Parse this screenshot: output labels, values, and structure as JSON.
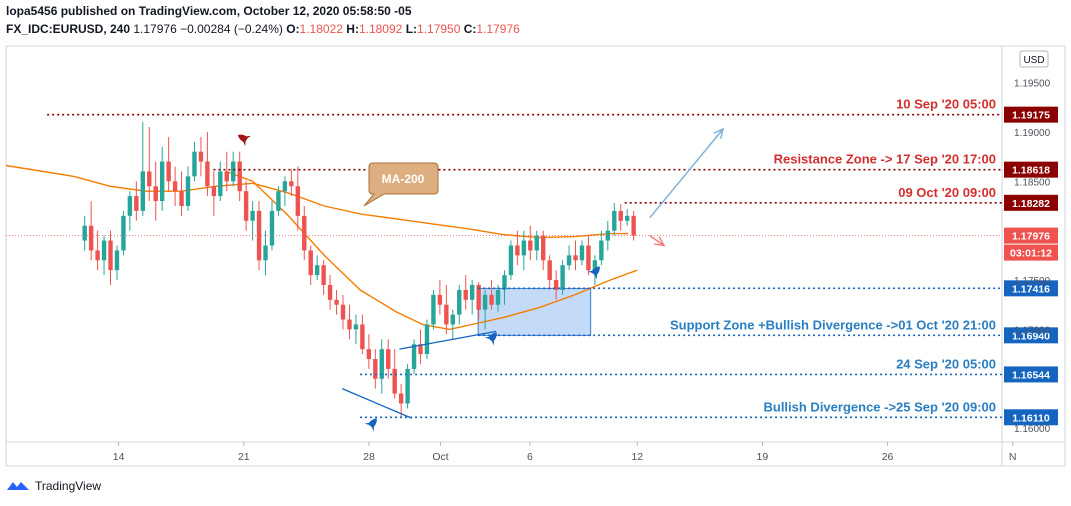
{
  "header": {
    "line1": "lopa5456 published on TradingView.com, October 12, 2020 05:58:50 -05",
    "symbol": "FX_IDC:EURUSD, 240",
    "last": "1.17976",
    "change": "−0.00284 (−0.24%)",
    "o_label": "O:",
    "o": "1.18022",
    "h_label": "H:",
    "h": "1.18092",
    "l_label": "L:",
    "l": "1.17950",
    "c_label": "C:",
    "c": "1.17976"
  },
  "currency_button": "USD",
  "footer": {
    "logo_text": "TradingView"
  },
  "colors": {
    "up": "#26a69a",
    "down": "#ef5350",
    "ma": "#f57c00",
    "resistance": "#8b0000",
    "support": "#1565c0",
    "support_label": "#2a7fc2",
    "zone_fill": "#b8d4f7"
  },
  "chart_data": {
    "type": "candlestick",
    "symbol": "EURUSD",
    "timeframe": "240",
    "ylim": [
      1.1588,
      1.1985
    ],
    "y_ticks": [
      "1.19500",
      "1.19000",
      "1.18500",
      "1.17500",
      "1.17000",
      "1.16000"
    ],
    "x_ticks": [
      {
        "label": "14",
        "t": 2.5
      },
      {
        "label": "21",
        "t": 9.5
      },
      {
        "label": "28",
        "t": 16.5
      },
      {
        "label": "Oct",
        "t": 20.5
      },
      {
        "label": "6",
        "t": 25.5
      },
      {
        "label": "12",
        "t": 31.5
      },
      {
        "label": "19",
        "t": 38.5
      },
      {
        "label": "26",
        "t": 45.5
      },
      {
        "label": "N",
        "t": 52.5
      }
    ],
    "xlim": [
      -3.8,
      51.9
    ],
    "candles": [
      {
        "o": 1.179,
        "h": 1.1815,
        "l": 1.178,
        "c": 1.1805
      },
      {
        "o": 1.1805,
        "h": 1.183,
        "l": 1.177,
        "c": 1.178
      },
      {
        "o": 1.178,
        "h": 1.18,
        "l": 1.176,
        "c": 1.177
      },
      {
        "o": 1.177,
        "h": 1.1795,
        "l": 1.1755,
        "c": 1.179
      },
      {
        "o": 1.179,
        "h": 1.18,
        "l": 1.1745,
        "c": 1.176
      },
      {
        "o": 1.176,
        "h": 1.1785,
        "l": 1.175,
        "c": 1.178
      },
      {
        "o": 1.178,
        "h": 1.182,
        "l": 1.1775,
        "c": 1.1815
      },
      {
        "o": 1.1815,
        "h": 1.184,
        "l": 1.18,
        "c": 1.1835
      },
      {
        "o": 1.1835,
        "h": 1.185,
        "l": 1.181,
        "c": 1.182
      },
      {
        "o": 1.182,
        "h": 1.191,
        "l": 1.1815,
        "c": 1.186
      },
      {
        "o": 1.186,
        "h": 1.1905,
        "l": 1.183,
        "c": 1.1845
      },
      {
        "o": 1.1845,
        "h": 1.187,
        "l": 1.181,
        "c": 1.183
      },
      {
        "o": 1.183,
        "h": 1.1885,
        "l": 1.182,
        "c": 1.187
      },
      {
        "o": 1.187,
        "h": 1.1895,
        "l": 1.184,
        "c": 1.185
      },
      {
        "o": 1.185,
        "h": 1.1865,
        "l": 1.1825,
        "c": 1.184
      },
      {
        "o": 1.184,
        "h": 1.186,
        "l": 1.1815,
        "c": 1.1825
      },
      {
        "o": 1.1825,
        "h": 1.1865,
        "l": 1.182,
        "c": 1.1855
      },
      {
        "o": 1.1855,
        "h": 1.189,
        "l": 1.185,
        "c": 1.188
      },
      {
        "o": 1.188,
        "h": 1.1895,
        "l": 1.1855,
        "c": 1.187
      },
      {
        "o": 1.187,
        "h": 1.19,
        "l": 1.1835,
        "c": 1.1845
      },
      {
        "o": 1.1845,
        "h": 1.186,
        "l": 1.1815,
        "c": 1.1835
      },
      {
        "o": 1.1835,
        "h": 1.187,
        "l": 1.183,
        "c": 1.186
      },
      {
        "o": 1.186,
        "h": 1.188,
        "l": 1.184,
        "c": 1.185
      },
      {
        "o": 1.185,
        "h": 1.188,
        "l": 1.1845,
        "c": 1.187
      },
      {
        "o": 1.187,
        "h": 1.188,
        "l": 1.183,
        "c": 1.184
      },
      {
        "o": 1.184,
        "h": 1.185,
        "l": 1.18,
        "c": 1.181
      },
      {
        "o": 1.181,
        "h": 1.183,
        "l": 1.179,
        "c": 1.182
      },
      {
        "o": 1.182,
        "h": 1.183,
        "l": 1.176,
        "c": 1.177
      },
      {
        "o": 1.177,
        "h": 1.18,
        "l": 1.1755,
        "c": 1.1785
      },
      {
        "o": 1.1785,
        "h": 1.183,
        "l": 1.178,
        "c": 1.182
      },
      {
        "o": 1.182,
        "h": 1.1845,
        "l": 1.1815,
        "c": 1.184
      },
      {
        "o": 1.184,
        "h": 1.1855,
        "l": 1.1825,
        "c": 1.185
      },
      {
        "o": 1.185,
        "h": 1.1862,
        "l": 1.1835,
        "c": 1.1845
      },
      {
        "o": 1.1845,
        "h": 1.1865,
        "l": 1.18,
        "c": 1.1815
      },
      {
        "o": 1.1815,
        "h": 1.1825,
        "l": 1.177,
        "c": 1.178
      },
      {
        "o": 1.178,
        "h": 1.1785,
        "l": 1.1745,
        "c": 1.1755
      },
      {
        "o": 1.1755,
        "h": 1.1775,
        "l": 1.175,
        "c": 1.1765
      },
      {
        "o": 1.1765,
        "h": 1.177,
        "l": 1.1735,
        "c": 1.1745
      },
      {
        "o": 1.1745,
        "h": 1.1755,
        "l": 1.172,
        "c": 1.173
      },
      {
        "o": 1.173,
        "h": 1.174,
        "l": 1.1715,
        "c": 1.1725
      },
      {
        "o": 1.1725,
        "h": 1.1735,
        "l": 1.17,
        "c": 1.171
      },
      {
        "o": 1.171,
        "h": 1.1725,
        "l": 1.169,
        "c": 1.17
      },
      {
        "o": 1.17,
        "h": 1.1715,
        "l": 1.1685,
        "c": 1.1705
      },
      {
        "o": 1.1705,
        "h": 1.1715,
        "l": 1.1675,
        "c": 1.168
      },
      {
        "o": 1.168,
        "h": 1.1695,
        "l": 1.166,
        "c": 1.167
      },
      {
        "o": 1.167,
        "h": 1.168,
        "l": 1.164,
        "c": 1.165
      },
      {
        "o": 1.165,
        "h": 1.169,
        "l": 1.1635,
        "c": 1.168
      },
      {
        "o": 1.168,
        "h": 1.169,
        "l": 1.165,
        "c": 1.166
      },
      {
        "o": 1.166,
        "h": 1.168,
        "l": 1.163,
        "c": 1.1635
      },
      {
        "o": 1.1635,
        "h": 1.1645,
        "l": 1.1611,
        "c": 1.1625
      },
      {
        "o": 1.1625,
        "h": 1.1665,
        "l": 1.162,
        "c": 1.166
      },
      {
        "o": 1.166,
        "h": 1.169,
        "l": 1.1655,
        "c": 1.1685
      },
      {
        "o": 1.1685,
        "h": 1.17,
        "l": 1.1665,
        "c": 1.1675
      },
      {
        "o": 1.1675,
        "h": 1.171,
        "l": 1.167,
        "c": 1.1705
      },
      {
        "o": 1.1705,
        "h": 1.174,
        "l": 1.17,
        "c": 1.1735
      },
      {
        "o": 1.1735,
        "h": 1.175,
        "l": 1.1715,
        "c": 1.1725
      },
      {
        "o": 1.1725,
        "h": 1.1745,
        "l": 1.1695,
        "c": 1.1705
      },
      {
        "o": 1.1705,
        "h": 1.172,
        "l": 1.169,
        "c": 1.1715
      },
      {
        "o": 1.1715,
        "h": 1.1745,
        "l": 1.1705,
        "c": 1.174
      },
      {
        "o": 1.174,
        "h": 1.1755,
        "l": 1.172,
        "c": 1.173
      },
      {
        "o": 1.173,
        "h": 1.175,
        "l": 1.1715,
        "c": 1.1745
      },
      {
        "o": 1.1745,
        "h": 1.1748,
        "l": 1.171,
        "c": 1.172
      },
      {
        "o": 1.172,
        "h": 1.174,
        "l": 1.17,
        "c": 1.1735
      },
      {
        "o": 1.1735,
        "h": 1.175,
        "l": 1.172,
        "c": 1.1725
      },
      {
        "o": 1.1725,
        "h": 1.1745,
        "l": 1.1718,
        "c": 1.174
      },
      {
        "o": 1.174,
        "h": 1.176,
        "l": 1.1725,
        "c": 1.1755
      },
      {
        "o": 1.1755,
        "h": 1.179,
        "l": 1.175,
        "c": 1.1785
      },
      {
        "o": 1.1785,
        "h": 1.18,
        "l": 1.1765,
        "c": 1.1775
      },
      {
        "o": 1.1775,
        "h": 1.18,
        "l": 1.176,
        "c": 1.179
      },
      {
        "o": 1.179,
        "h": 1.1805,
        "l": 1.177,
        "c": 1.178
      },
      {
        "o": 1.178,
        "h": 1.18,
        "l": 1.177,
        "c": 1.1795
      },
      {
        "o": 1.1795,
        "h": 1.18,
        "l": 1.176,
        "c": 1.177
      },
      {
        "o": 1.177,
        "h": 1.1775,
        "l": 1.174,
        "c": 1.175
      },
      {
        "o": 1.175,
        "h": 1.176,
        "l": 1.173,
        "c": 1.174
      },
      {
        "o": 1.174,
        "h": 1.177,
        "l": 1.1735,
        "c": 1.1765
      },
      {
        "o": 1.1765,
        "h": 1.1785,
        "l": 1.176,
        "c": 1.1775
      },
      {
        "o": 1.1775,
        "h": 1.179,
        "l": 1.176,
        "c": 1.177
      },
      {
        "o": 1.177,
        "h": 1.179,
        "l": 1.1765,
        "c": 1.1785
      },
      {
        "o": 1.1785,
        "h": 1.1795,
        "l": 1.1755,
        "c": 1.176
      },
      {
        "o": 1.176,
        "h": 1.1775,
        "l": 1.1745,
        "c": 1.177
      },
      {
        "o": 1.177,
        "h": 1.18,
        "l": 1.1765,
        "c": 1.179
      },
      {
        "o": 1.179,
        "h": 1.181,
        "l": 1.178,
        "c": 1.18
      },
      {
        "o": 1.18,
        "h": 1.1828,
        "l": 1.1795,
        "c": 1.182
      },
      {
        "o": 1.182,
        "h": 1.1827,
        "l": 1.18,
        "c": 1.181
      },
      {
        "o": 1.181,
        "h": 1.1822,
        "l": 1.1805,
        "c": 1.1815
      },
      {
        "o": 1.1815,
        "h": 1.182,
        "l": 1.179,
        "c": 1.1795
      }
    ],
    "ma_200": [
      [
        -3.8,
        1.1866
      ],
      [
        0,
        1.1855
      ],
      [
        2,
        1.1845
      ],
      [
        4,
        1.184
      ],
      [
        6,
        1.184
      ],
      [
        8,
        1.1845
      ],
      [
        10,
        1.1848
      ],
      [
        12,
        1.1838
      ],
      [
        14,
        1.1825
      ],
      [
        16,
        1.1817
      ],
      [
        18,
        1.1812
      ],
      [
        20,
        1.1807
      ],
      [
        22,
        1.1802
      ],
      [
        24,
        1.1796
      ],
      [
        26,
        1.1793
      ],
      [
        28,
        1.1794
      ],
      [
        30,
        1.1797
      ],
      [
        31,
        1.1797
      ]
    ],
    "ma_short": [
      [
        8.5,
        1.186
      ],
      [
        10,
        1.185
      ],
      [
        12,
        1.1815
      ],
      [
        14,
        1.1775
      ],
      [
        16,
        1.174
      ],
      [
        18,
        1.1718
      ],
      [
        19.5,
        1.1705
      ],
      [
        21,
        1.17
      ],
      [
        22.5,
        1.1706
      ],
      [
        24,
        1.1712
      ],
      [
        26,
        1.1722
      ],
      [
        28,
        1.1735
      ],
      [
        30,
        1.175
      ],
      [
        31.5,
        1.176
      ]
    ],
    "levels": [
      {
        "price": 1.19175,
        "price_label": "1.19175",
        "annotation": "10 Sep '20 05:00",
        "kind": "resistance",
        "t_start": -1.5
      },
      {
        "price": 1.18618,
        "price_label": "1.18618",
        "annotation": "Resistance Zone -> 17 Sep '20 17:00",
        "kind": "resistance",
        "t_start": 7.8
      },
      {
        "price": 1.18282,
        "price_label": "1.18282",
        "annotation": "09 Oct '20 09:00",
        "kind": "resistance",
        "t_start": 30.8
      },
      {
        "price": 1.17416,
        "price_label": "1.17416",
        "annotation": "",
        "kind": "support",
        "t_start": 22.6
      },
      {
        "price": 1.1694,
        "price_label": "1.16940",
        "annotation": "Support Zone +Bullish Divergence ->01 Oct '20 21:00",
        "kind": "support",
        "t_start": 22.6
      },
      {
        "price": 1.16544,
        "price_label": "1.16544",
        "annotation": "24 Sep '20 05:00",
        "kind": "support",
        "t_start": 16.0
      },
      {
        "price": 1.1611,
        "price_label": "1.16110",
        "annotation": "Bullish Divergence ->25 Sep '20 09:00",
        "kind": "support",
        "t_start": 16.0
      }
    ],
    "current_price_label": "1.17976",
    "countdown_label": "03:01:12",
    "support_zone": {
      "t0": 22.6,
      "t1": 28.9,
      "y0": 1.1694,
      "y1": 1.17416
    },
    "ma_callout": "MA-200",
    "divergence_lines": [
      {
        "t0": 15.0,
        "p0": 1.164,
        "t1": 18.9,
        "p1": 1.161
      },
      {
        "t0": 18.2,
        "p0": 1.168,
        "t1": 23.6,
        "p1": 1.1698
      }
    ],
    "forecast_up": {
      "t0": 32.2,
      "p0": 1.1813,
      "t1": 36.3,
      "p1": 1.1903
    },
    "forecast_down": {
      "t0": 32.2,
      "p0": 1.1795,
      "t1": 33.0,
      "p1": 1.1785
    }
  }
}
